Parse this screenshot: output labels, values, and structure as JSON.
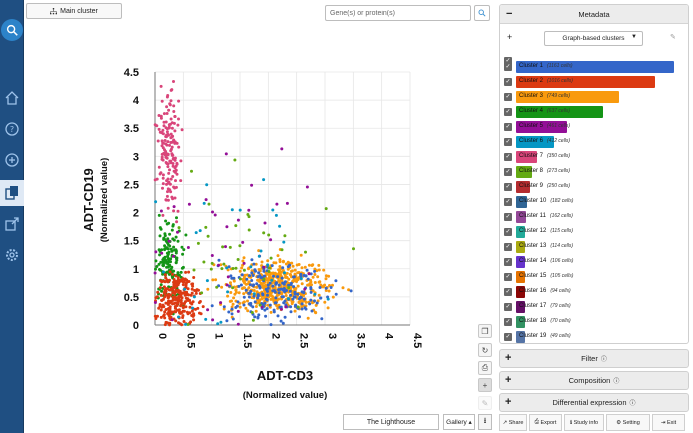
{
  "toolbar": {
    "main_cluster_label": "Main cluster",
    "search_placeholder": "Gene(s) or protein(s)",
    "lighthouse_label": "The Lighthouse",
    "gallery_label": "Gallery ▴"
  },
  "metadata": {
    "title": "Metadata",
    "selected_metadata": "Graph-based clusters",
    "clusters": [
      {
        "label": "Cluster 1",
        "count": "(1161 cells)",
        "color": "#3466c9",
        "fill": 1.0
      },
      {
        "label": "Cluster 2",
        "count": "(1016 cells)",
        "color": "#dc3a12",
        "fill": 0.88
      },
      {
        "label": "Cluster 3",
        "count": "(749 cells)",
        "color": "#f99a0e",
        "fill": 0.65
      },
      {
        "label": "Cluster 4",
        "count": "(637 cells)",
        "color": "#149416",
        "fill": 0.55
      },
      {
        "label": "Cluster 5",
        "count": "(461 cells)",
        "color": "#930f97",
        "fill": 0.32
      },
      {
        "label": "Cluster 6",
        "count": "(412 cells)",
        "color": "#0597c4",
        "fill": 0.24
      },
      {
        "label": "Cluster 7",
        "count": "(350 cells)",
        "color": "#d9457a",
        "fill": 0.13
      },
      {
        "label": "Cluster 8",
        "count": "(273 cells)",
        "color": "#64aa13",
        "fill": 0.1
      },
      {
        "label": "Cluster 9",
        "count": "(250 cells)",
        "color": "#b42c2f",
        "fill": 0.09
      },
      {
        "label": "Cluster 10",
        "count": "(182 cells)",
        "color": "#306595",
        "fill": 0.07
      },
      {
        "label": "Cluster 11",
        "count": "(162 cells)",
        "color": "#944898",
        "fill": 0.065
      },
      {
        "label": "Cluster 12",
        "count": "(115 cells)",
        "color": "#22aa99",
        "fill": 0.06
      },
      {
        "label": "Cluster 13",
        "count": "(114 cells)",
        "color": "#aaaa11",
        "fill": 0.06
      },
      {
        "label": "Cluster 14",
        "count": "(106 cells)",
        "color": "#6633cc",
        "fill": 0.06
      },
      {
        "label": "Cluster 15",
        "count": "(105 cells)",
        "color": "#e67300",
        "fill": 0.06
      },
      {
        "label": "Cluster 16",
        "count": "(94 cells)",
        "color": "#8b0707",
        "fill": 0.06
      },
      {
        "label": "Cluster 17",
        "count": "(79 cells)",
        "color": "#651067",
        "fill": 0.06
      },
      {
        "label": "Cluster 18",
        "count": "(70 cells)",
        "color": "#329262",
        "fill": 0.06
      },
      {
        "label": "Cluster 19",
        "count": "(49 cells)",
        "color": "#5574a6",
        "fill": 0.06
      }
    ]
  },
  "panels": {
    "filter": "Filter",
    "composition": "Composition",
    "differential": "Differential expression"
  },
  "bottom_bar": {
    "share": "Share",
    "export": "Export",
    "study_info": "Study info",
    "setting": "Setting",
    "exit": "Exit"
  },
  "icons": {
    "sidebar": [
      "logo-search-icon",
      "home-icon",
      "help-icon",
      "add-icon",
      "copy-icon",
      "export-icon",
      "settings-icon"
    ],
    "plot_tools": [
      "copy-icon",
      "refresh-icon",
      "print-icon",
      "zoom-in-icon",
      "edit-icon"
    ]
  },
  "chart_data": {
    "type": "scatter",
    "xlabel": "ADT-CD3",
    "xlabel_sub": "(Normalized value)",
    "ylabel": "ADT-CD19",
    "ylabel_sub": "(Normalized value)",
    "xlim": [
      0,
      4.5
    ],
    "ylim": [
      0,
      4.5
    ],
    "x_ticks": [
      "0",
      "0.5",
      "1",
      "1.5",
      "2",
      "2.5",
      "3",
      "3.5",
      "4",
      "4.5"
    ],
    "y_ticks": [
      "0",
      "0.5",
      "1",
      "1.5",
      "2",
      "2.5",
      "3",
      "3.5",
      "4",
      "4.5"
    ],
    "grid": true,
    "groups": [
      {
        "name": "Cluster 7",
        "color": "#d9457a",
        "cx": 0.25,
        "cy": 3.1,
        "sx": 0.1,
        "sy": 0.5,
        "n": 160
      },
      {
        "name": "Cluster 4",
        "color": "#149416",
        "cx": 0.25,
        "cy": 1.05,
        "sx": 0.12,
        "sy": 0.35,
        "n": 160
      },
      {
        "name": "Cluster 2",
        "color": "#dc3a12",
        "cx": 0.4,
        "cy": 0.45,
        "sx": 0.18,
        "sy": 0.25,
        "n": 260
      },
      {
        "name": "Cluster 3",
        "color": "#f99a0e",
        "cx": 2.15,
        "cy": 0.7,
        "sx": 0.45,
        "sy": 0.22,
        "n": 520
      },
      {
        "name": "Cluster 1",
        "color": "#3466c9",
        "cx": 2.1,
        "cy": 0.6,
        "sx": 0.5,
        "sy": 0.28,
        "n": 200
      },
      {
        "name": "Cluster 5",
        "color": "#930f97",
        "cx": 1.4,
        "cy": 1.4,
        "sx": 0.8,
        "sy": 0.8,
        "n": 45
      },
      {
        "name": "Cluster 8",
        "color": "#64aa13",
        "cx": 1.4,
        "cy": 1.3,
        "sx": 0.8,
        "sy": 0.7,
        "n": 45
      },
      {
        "name": "Cluster 6",
        "color": "#0597c4",
        "cx": 1.6,
        "cy": 1.2,
        "sx": 0.8,
        "sy": 0.7,
        "n": 35
      }
    ]
  }
}
